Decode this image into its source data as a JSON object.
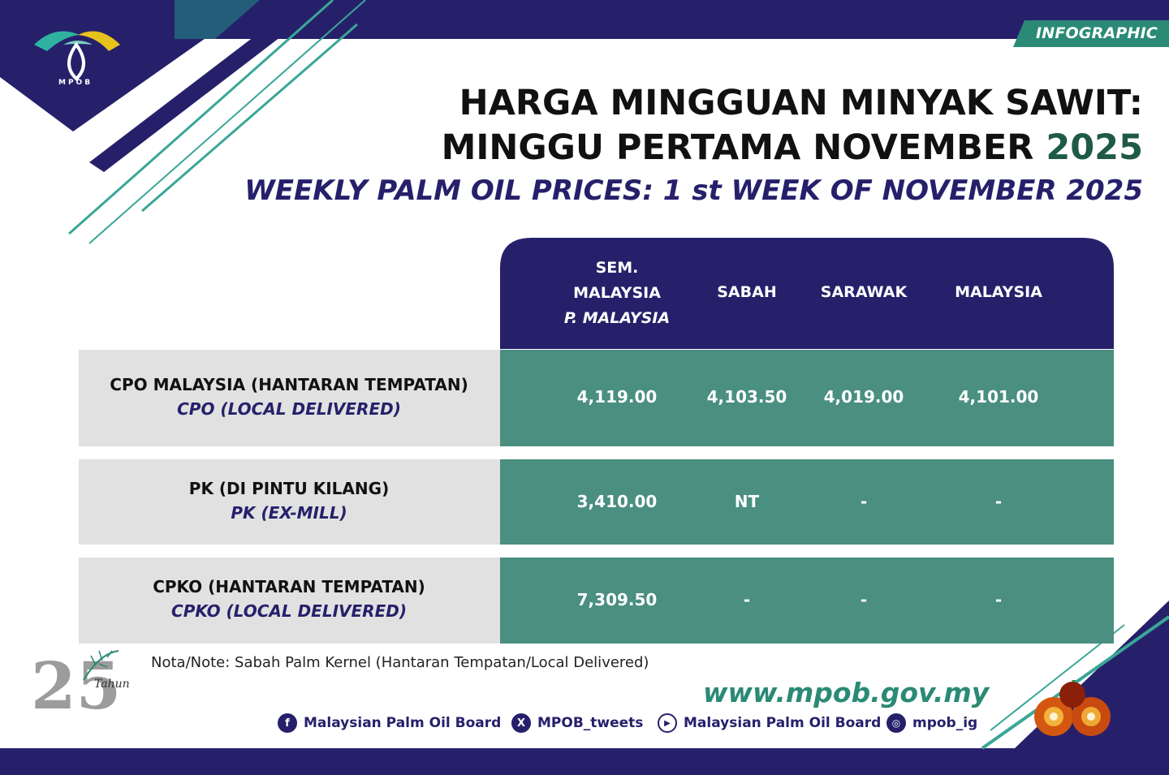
{
  "badge": "INFOGRAPHIC",
  "logo": {
    "text": "MPOB"
  },
  "title": {
    "line1": "HARGA MINGGUAN MINYAK SAWIT:",
    "line2_main": "MINGGU PERTAMA NOVEMBER ",
    "line2_year": "2025",
    "line3": "WEEKLY PALM OIL PRICES: 1 st WEEK OF NOVEMBER 2025"
  },
  "table": {
    "headers": {
      "col1_line1": "SEM.",
      "col1_line2": "MALAYSIA",
      "col1_line3": "P. MALAYSIA",
      "col2": "SABAH",
      "col3": "SARAWAK",
      "col4": "MALAYSIA"
    },
    "rows": [
      {
        "label_ms": "CPO MALAYSIA (HANTARAN TEMPATAN)",
        "label_en": "CPO (LOCAL DELIVERED)",
        "values": [
          "4,119.00",
          "4,103.50",
          "4,019.00",
          "4,101.00"
        ]
      },
      {
        "label_ms": "PK (DI PINTU KILANG)",
        "label_en": "PK (EX-MILL)",
        "values": [
          "3,410.00",
          "NT",
          "-",
          "-"
        ]
      },
      {
        "label_ms": "CPKO (HANTARAN TEMPATAN)",
        "label_en": "CPKO (LOCAL DELIVERED)",
        "values": [
          "7,309.50",
          "-",
          "-",
          "-"
        ]
      }
    ]
  },
  "note": "Nota/Note: Sabah Palm Kernel (Hantaran Tempatan/Local Delivered)",
  "website": "www.mpob.gov.my",
  "social": {
    "facebook": "Malaysian Palm Oil Board",
    "x": "MPOB_tweets",
    "youtube": "Malaysian Palm Oil Board",
    "instagram": "mpob_ig"
  },
  "anniversary": {
    "number": "25",
    "word": "Tahun"
  },
  "colors": {
    "navy": "#26206b",
    "teal": "#4a8f80",
    "grey": "#e1e1e1",
    "accent": "#1f9a8a"
  }
}
